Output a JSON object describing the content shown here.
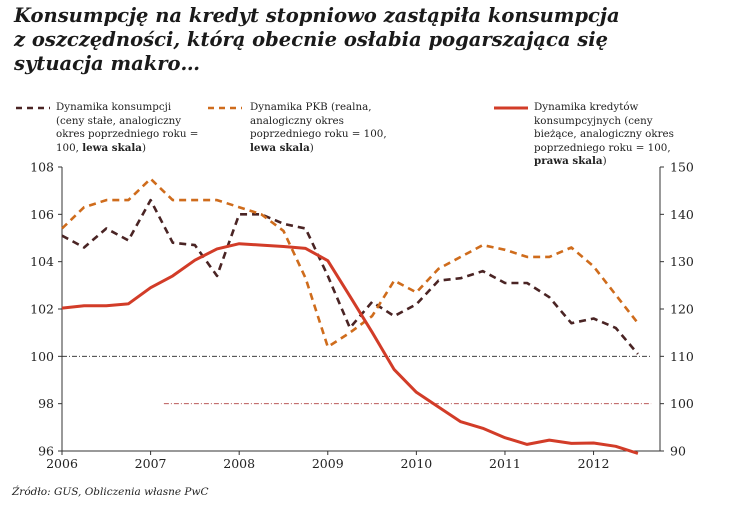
{
  "title_lines": [
    "Konsumpcję na kredyt stopniowo zastąpiła konsumpcja",
    "z oszczędności, którą obecnie osłabia pogarszająca się",
    "sytuacja makro…"
  ],
  "legend": [
    {
      "lines": [
        "Dynamika konsumpcji",
        "(ceny stałe, analogiczny",
        "okres poprzedniego roku =",
        "100, "
      ],
      "bold_suffix": "lewa skala",
      "suffix_end": ")",
      "color": "#4a2424",
      "style": "dashed"
    },
    {
      "lines": [
        "Dynamika PKB (realna,",
        "analogiczny okres",
        "poprzedniego roku = 100,",
        ""
      ],
      "bold_suffix": "lewa skala",
      "suffix_end": ")",
      "color": "#cf6c1c",
      "style": "dashed"
    },
    {
      "lines": [
        "Dynamika kredytów",
        "konsumpcyjnych (ceny",
        "bieżące, analogiczny okres",
        "poprzedniego roku = 100,",
        ""
      ],
      "bold_suffix": "prawa skala",
      "suffix_end": ")",
      "color": "#d23c28",
      "style": "solid"
    }
  ],
  "source": "Źródło: GUS, Obliczenia własne PwC",
  "chart_data": {
    "type": "line",
    "x_ticks": [
      "2006",
      "2007",
      "2008",
      "2009",
      "2010",
      "2011",
      "2012"
    ],
    "x_range": [
      2006.0,
      2012.75
    ],
    "left_axis": {
      "ticks": [
        "96",
        "98",
        "100",
        "102",
        "104",
        "106",
        "108"
      ],
      "ylim": [
        96,
        108
      ]
    },
    "right_axis": {
      "ticks": [
        "90",
        "100",
        "110",
        "120",
        "130",
        "140",
        "150"
      ],
      "ylim": [
        90,
        150
      ]
    },
    "reference_lines": [
      {
        "axis": "left",
        "value": 100,
        "from": 2006.0,
        "to": 2012.65,
        "color": "#222222"
      },
      {
        "axis": "right",
        "value": 100,
        "from": 2007.15,
        "to": 2012.65,
        "color": "#b04040"
      }
    ],
    "series": [
      {
        "name": "Dynamika konsumpcji",
        "axis": "left",
        "color": "#4a2424",
        "dash": "dashed",
        "x": [
          2006.0,
          2006.25,
          2006.5,
          2006.75,
          2007.0,
          2007.25,
          2007.5,
          2007.75,
          2008.0,
          2008.25,
          2008.5,
          2008.75,
          2009.0,
          2009.25,
          2009.5,
          2009.75,
          2010.0,
          2010.25,
          2010.5,
          2010.75,
          2011.0,
          2011.25,
          2011.5,
          2011.75,
          2012.0,
          2012.25,
          2012.5
        ],
        "values": [
          105.1,
          104.6,
          105.4,
          104.9,
          106.6,
          104.8,
          104.7,
          103.4,
          106.0,
          106.0,
          105.6,
          105.4,
          103.4,
          101.2,
          102.3,
          101.7,
          102.2,
          103.2,
          103.3,
          103.6,
          103.1,
          103.1,
          102.5,
          101.4,
          101.6,
          101.2,
          100.1
        ]
      },
      {
        "name": "Dynamika PKB",
        "axis": "left",
        "color": "#cf6c1c",
        "dash": "dashed",
        "x": [
          2006.0,
          2006.25,
          2006.5,
          2006.75,
          2007.0,
          2007.25,
          2007.5,
          2007.75,
          2008.0,
          2008.25,
          2008.5,
          2008.75,
          2009.0,
          2009.25,
          2009.5,
          2009.75,
          2010.0,
          2010.25,
          2010.5,
          2010.75,
          2011.0,
          2011.25,
          2011.5,
          2011.75,
          2012.0,
          2012.25,
          2012.5
        ],
        "values": [
          105.4,
          106.3,
          106.6,
          106.6,
          107.5,
          106.6,
          106.6,
          106.6,
          106.3,
          106.0,
          105.3,
          103.3,
          100.4,
          101.0,
          101.7,
          103.2,
          102.7,
          103.7,
          104.2,
          104.7,
          104.5,
          104.2,
          104.2,
          104.6,
          103.8,
          102.6,
          101.4
        ]
      },
      {
        "name": "Dynamika kredytów konsumpcyjnych",
        "axis": "right",
        "color": "#d23c28",
        "dash": "solid",
        "x": [
          2006.0,
          2006.25,
          2006.5,
          2006.75,
          2007.0,
          2007.25,
          2007.5,
          2007.75,
          2008.0,
          2008.25,
          2008.5,
          2008.75,
          2009.0,
          2009.25,
          2009.5,
          2009.75,
          2010.0,
          2010.25,
          2010.5,
          2010.75,
          2011.0,
          2011.25,
          2011.5,
          2011.75,
          2012.0,
          2012.25,
          2012.5
        ],
        "values": [
          120.2,
          120.7,
          120.7,
          121.1,
          124.5,
          127.0,
          130.3,
          132.7,
          133.8,
          133.5,
          133.2,
          132.8,
          130.2,
          122.7,
          115.1,
          107.2,
          102.4,
          99.3,
          96.2,
          94.8,
          92.8,
          91.4,
          92.3,
          91.6,
          91.7,
          91.0,
          89.5
        ]
      }
    ]
  }
}
